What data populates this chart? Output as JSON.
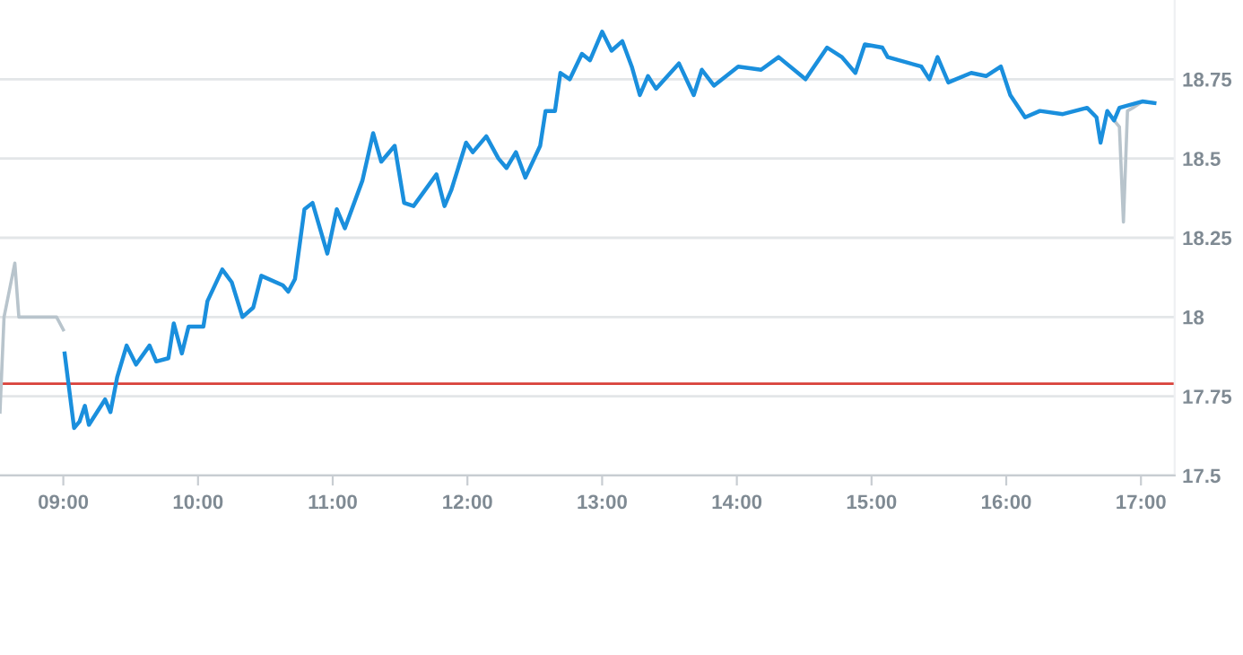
{
  "chart_data": {
    "type": "line",
    "series": [
      {
        "color": "#b8c4cc",
        "x": [
          8.53,
          8.56,
          8.64,
          8.67,
          8.95,
          9.0
        ],
        "values": [
          17.7,
          18.0,
          18.17,
          18.0,
          18.0,
          17.96
        ]
      },
      {
        "color": "#b8c4cc",
        "x": [
          16.8,
          16.84,
          16.87,
          16.9,
          16.94,
          17.01,
          17.1
        ],
        "values": [
          18.62,
          18.6,
          18.3,
          18.65,
          18.66,
          18.68,
          18.675
        ]
      },
      {
        "color": "#1a8fdd",
        "x": [
          9.01,
          9.08,
          9.12,
          9.16,
          9.19,
          9.31,
          9.35,
          9.4,
          9.47,
          9.54,
          9.64,
          9.69,
          9.78,
          9.82,
          9.88,
          9.93,
          10.04,
          10.07,
          10.18,
          10.25,
          10.33,
          10.41,
          10.47,
          10.63,
          10.67,
          10.72,
          10.79,
          10.85,
          10.96,
          11.03,
          11.09,
          11.22,
          11.3,
          11.36,
          11.46,
          11.53,
          11.6,
          11.77,
          11.83,
          11.88,
          11.99,
          12.04,
          12.14,
          12.23,
          12.29,
          12.36,
          12.43,
          12.54,
          12.58,
          12.65,
          12.69,
          12.76,
          12.85,
          12.91,
          13.0,
          13.07,
          13.15,
          13.22,
          13.28,
          13.34,
          13.4,
          13.57,
          13.68,
          13.74,
          13.83,
          14.01,
          14.18,
          14.31,
          14.51,
          14.67,
          14.78,
          14.88,
          14.95,
          15.08,
          15.12,
          15.37,
          15.43,
          15.49,
          15.57,
          15.74,
          15.85,
          15.96,
          16.03,
          16.14,
          16.25,
          16.42,
          16.6,
          16.67,
          16.7,
          16.75,
          16.8,
          16.84,
          17.01,
          17.1
        ],
        "values": [
          17.885,
          17.65,
          17.67,
          17.72,
          17.66,
          17.74,
          17.7,
          17.81,
          17.91,
          17.85,
          17.91,
          17.86,
          17.87,
          17.98,
          17.885,
          17.97,
          17.97,
          18.05,
          18.15,
          18.11,
          18.0,
          18.03,
          18.13,
          18.1,
          18.08,
          18.12,
          18.34,
          18.36,
          18.2,
          18.34,
          18.28,
          18.43,
          18.58,
          18.49,
          18.54,
          18.36,
          18.35,
          18.45,
          18.35,
          18.4,
          18.55,
          18.52,
          18.57,
          18.5,
          18.47,
          18.52,
          18.44,
          18.54,
          18.65,
          18.65,
          18.77,
          18.75,
          18.83,
          18.81,
          18.9,
          18.84,
          18.87,
          18.79,
          18.7,
          18.76,
          18.72,
          18.8,
          18.7,
          18.78,
          18.73,
          18.79,
          18.78,
          18.82,
          18.75,
          18.85,
          18.82,
          18.77,
          18.86,
          18.85,
          18.82,
          18.79,
          18.75,
          18.82,
          18.74,
          18.77,
          18.76,
          18.79,
          18.7,
          18.63,
          18.65,
          18.64,
          18.66,
          18.63,
          18.55,
          18.65,
          18.62,
          18.66,
          18.68,
          18.675
        ]
      }
    ],
    "xlim": [
      8.53,
      17.25
    ],
    "xticks": [
      {
        "value": 9,
        "label": "09:00"
      },
      {
        "value": 10,
        "label": "10:00"
      },
      {
        "value": 11,
        "label": "11:00"
      },
      {
        "value": 12,
        "label": "12:00"
      },
      {
        "value": 13,
        "label": "13:00"
      },
      {
        "value": 14,
        "label": "14:00"
      },
      {
        "value": 15,
        "label": "15:00"
      },
      {
        "value": 16,
        "label": "16:00"
      },
      {
        "value": 17,
        "label": "17:00"
      }
    ],
    "ylim": [
      17.5,
      19.0
    ],
    "yticks": [
      17.5,
      17.75,
      18,
      18.25,
      18.5,
      18.75
    ],
    "ref_lines": [
      {
        "axis": "y",
        "value": 17.79,
        "color": "#d9413a"
      }
    ],
    "grid": "y",
    "legend": false
  }
}
